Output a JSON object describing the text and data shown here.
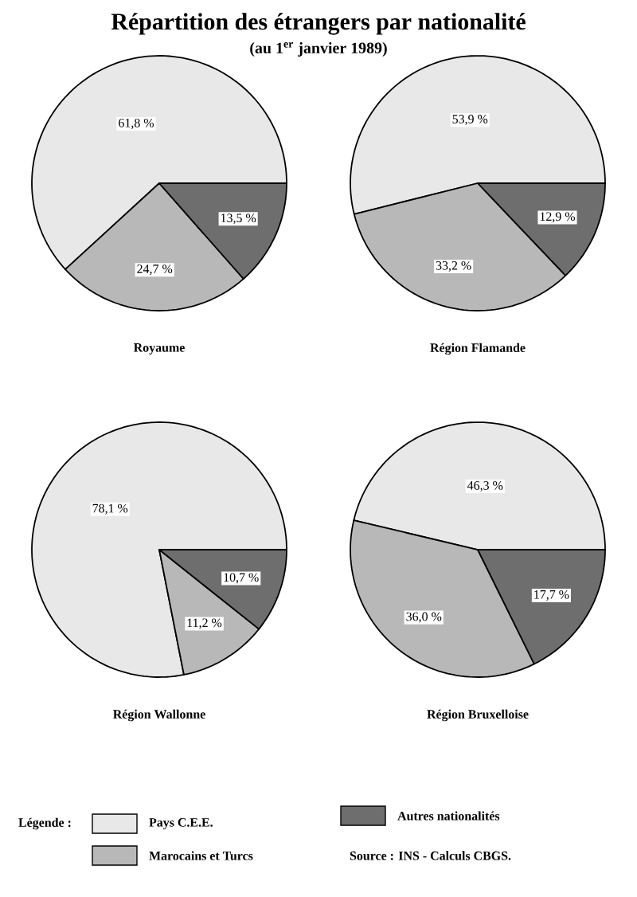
{
  "chart_data": [
    {
      "type": "pie",
      "title": "Répartition des étrangers par nationalité",
      "subtitle": "(au 1$^{er}$ janvier 1989)",
      "xlabel": "Royaume",
      "legend_title": "Légende :",
      "legend": "bottom",
      "annotations": [
        "Source : INS - Calculs CBGS."
      ],
      "categories": [
        "Pays C.E.E.",
        "Marocains et Turcs",
        "Autres nationalités"
      ],
      "values": [
        61.8,
        24.7,
        13.5
      ],
      "value_labels": [
        "61,8 %",
        "24,7 %",
        "13,5 %"
      ],
      "colors": [
        "#e8e8e8",
        "#b8b8b8",
        "#6e6e6e"
      ]
    },
    {
      "type": "pie",
      "xlabel": "Région Flamande",
      "categories": [
        null,
        null,
        null
      ],
      "values": [
        53.9,
        33.2,
        12.9
      ],
      "value_labels": [
        "53,9 %",
        "33,2 %",
        "12,9 %"
      ],
      "colors": [
        "#e8e8e8",
        "#b8b8b8",
        "#6e6e6e"
      ]
    },
    {
      "type": "pie",
      "xlabel": "Région Wallonne",
      "categories": [
        null,
        null,
        null
      ],
      "values": [
        78.1,
        11.2,
        10.7
      ],
      "value_labels": [
        "78,1 %",
        "11,2 %",
        "10,7 %"
      ],
      "colors": [
        "#e8e8e8",
        "#b8b8b8",
        "#6e6e6e"
      ]
    },
    {
      "type": "pie",
      "xlabel": "Région Bruxelloise",
      "categories": [
        null,
        null,
        null
      ],
      "values": [
        46.3,
        36.0,
        17.7
      ],
      "value_labels": [
        "46,3 %",
        "36,0 %",
        "17,7 %"
      ],
      "colors": [
        "#e8e8e8",
        "#b8b8b8",
        "#6e6e6e"
      ]
    }
  ]
}
